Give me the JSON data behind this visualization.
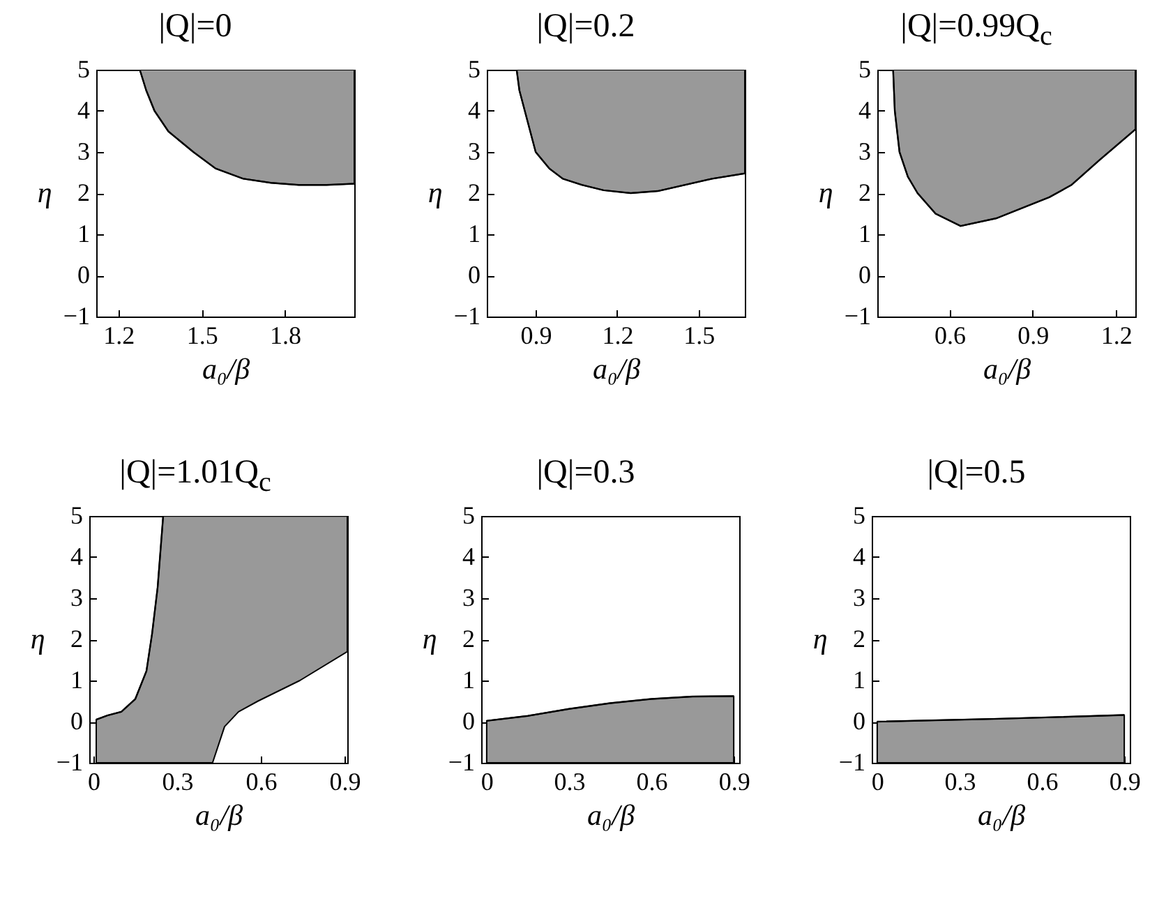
{
  "chart_data": [
    {
      "type": "line",
      "title": "|Q|=0",
      "xlabel": "a₀/β",
      "ylabel": "η",
      "xlim": [
        1.12,
        2.05
      ],
      "ylim": [
        -1,
        5
      ],
      "xticks": [
        1.2,
        1.5,
        1.8
      ],
      "yticks": [
        -1,
        0,
        1,
        2,
        3,
        4,
        5
      ],
      "x": [
        1.277,
        1.3,
        1.33,
        1.38,
        1.47,
        1.55,
        1.65,
        1.75,
        1.85,
        1.95,
        2.05
      ],
      "series": [
        {
          "color": "#000000",
          "values": [
            5,
            4.5,
            4,
            3.5,
            3,
            2.6,
            2.35,
            2.25,
            2.2,
            2.2,
            2.23
          ],
          "lower": [
            5,
            4.5,
            4,
            3.5,
            3,
            2.6,
            2.35,
            2.25,
            2.2,
            2.2,
            2.23
          ],
          "upper": [
            5,
            5,
            5,
            5,
            5,
            5,
            5,
            5,
            5,
            5,
            5
          ]
        }
      ]
    },
    {
      "type": "line",
      "title": "|Q|=0.2",
      "xlabel": "a₀/β",
      "ylabel": "η",
      "xlim": [
        0.72,
        1.67
      ],
      "ylim": [
        -1,
        5
      ],
      "xticks": [
        0.9,
        1.2,
        1.5
      ],
      "yticks": [
        -1,
        0,
        1,
        2,
        3,
        4,
        5
      ],
      "x": [
        0.83,
        0.84,
        0.86,
        0.88,
        0.9,
        0.95,
        1.0,
        1.07,
        1.15,
        1.25,
        1.35,
        1.45,
        1.55,
        1.67
      ],
      "series": [
        {
          "color": "#000000",
          "values": [
            5,
            4.5,
            4,
            3.5,
            3,
            2.6,
            2.35,
            2.2,
            2.07,
            2.0,
            2.05,
            2.2,
            2.35,
            2.48
          ],
          "lower": [
            5,
            4.5,
            4,
            3.5,
            3,
            2.6,
            2.35,
            2.2,
            2.07,
            2.0,
            2.05,
            2.2,
            2.35,
            2.48
          ],
          "upper": [
            5,
            5,
            5,
            5,
            5,
            5,
            5,
            5,
            5,
            5,
            5,
            5,
            5,
            5
          ]
        }
      ]
    },
    {
      "type": "line",
      "title": "|Q|=0.99Q$_{c}$",
      "xlabel": "a₀/β",
      "ylabel": "η",
      "xlim": [
        0.34,
        1.27
      ],
      "ylim": [
        -1,
        5
      ],
      "xticks": [
        0.6,
        0.9,
        1.2
      ],
      "yticks": [
        -1,
        0,
        1,
        2,
        3,
        4,
        5
      ],
      "x": [
        0.397,
        0.403,
        0.42,
        0.45,
        0.485,
        0.55,
        0.64,
        0.77,
        0.87,
        0.96,
        1.04,
        1.14,
        1.27
      ],
      "series": [
        {
          "color": "#000000",
          "values": [
            5,
            4,
            3,
            2.4,
            2,
            1.5,
            1.2,
            1.39,
            1.66,
            1.9,
            2.2,
            2.8,
            3.55
          ],
          "lower": [
            5,
            4,
            3,
            2.4,
            2,
            1.5,
            1.2,
            1.39,
            1.66,
            1.9,
            2.2,
            2.8,
            3.55
          ],
          "upper": [
            5,
            5,
            5,
            5,
            5,
            5,
            5,
            5,
            5,
            5,
            5,
            5,
            5
          ]
        }
      ]
    },
    {
      "type": "line",
      "title": "|Q|=1.01Q$_{c}$",
      "xlabel": "a₀/β",
      "ylabel": "η",
      "xlim": [
        -0.015,
        0.91
      ],
      "ylim": [
        -1,
        5
      ],
      "xticks": [
        0,
        0.3,
        0.6,
        0.9
      ],
      "yticks": [
        -1,
        0,
        1,
        2,
        3,
        4,
        5
      ],
      "x": [
        0.01,
        0.05,
        0.1,
        0.15,
        0.19,
        0.21,
        0.23,
        0.25,
        0.3,
        0.35,
        0.427,
        0.47,
        0.52,
        0.59,
        0.74,
        0.91
      ],
      "series": [
        {
          "color": "#000000",
          "values": [
            0.05,
            0.15,
            0.24,
            0.55,
            1.23,
            2.13,
            3.26,
            5,
            5,
            5,
            5,
            5,
            5,
            5,
            5,
            5
          ],
          "lower": [
            -1,
            -1,
            -1,
            -1,
            -1,
            -1,
            -1,
            -1,
            -1,
            -1,
            -1,
            -0.12,
            0.24,
            0.5,
            1.0,
            1.7
          ],
          "upper": [
            0.05,
            0.15,
            0.24,
            0.55,
            1.23,
            2.13,
            3.26,
            5,
            5,
            5,
            5,
            5,
            5,
            5,
            5,
            5
          ]
        }
      ]
    },
    {
      "type": "line",
      "title": "|Q|=0.3",
      "xlabel": "a₀/β",
      "ylabel": "η",
      "xlim": [
        -0.02,
        0.92
      ],
      "ylim": [
        -1,
        5
      ],
      "xticks": [
        0,
        0.3,
        0.6,
        0.9
      ],
      "yticks": [
        -1,
        0,
        1,
        2,
        3,
        4,
        5
      ],
      "x": [
        0,
        0.15,
        0.3,
        0.45,
        0.6,
        0.75,
        0.9
      ],
      "series": [
        {
          "color": "#000000",
          "values": [
            0.02,
            0.14,
            0.31,
            0.45,
            0.55,
            0.61,
            0.62
          ],
          "lower": [
            -1,
            -1,
            -1,
            -1,
            -1,
            -1,
            -1
          ],
          "upper": [
            0.02,
            0.14,
            0.31,
            0.45,
            0.55,
            0.61,
            0.62
          ]
        }
      ]
    },
    {
      "type": "line",
      "title": "|Q|=0.5",
      "xlabel": "a₀/β",
      "ylabel": "η",
      "xlim": [
        -0.02,
        0.92
      ],
      "ylim": [
        -1,
        5
      ],
      "xticks": [
        0,
        0.3,
        0.6,
        0.9
      ],
      "yticks": [
        -1,
        0,
        1,
        2,
        3,
        4,
        5
      ],
      "x": [
        0,
        0.45,
        0.9
      ],
      "series": [
        {
          "color": "#000000",
          "values": [
            0,
            0.07,
            0.16
          ],
          "lower": [
            -1,
            -1,
            -1
          ],
          "upper": [
            0,
            0.07,
            0.16
          ]
        }
      ]
    }
  ]
}
